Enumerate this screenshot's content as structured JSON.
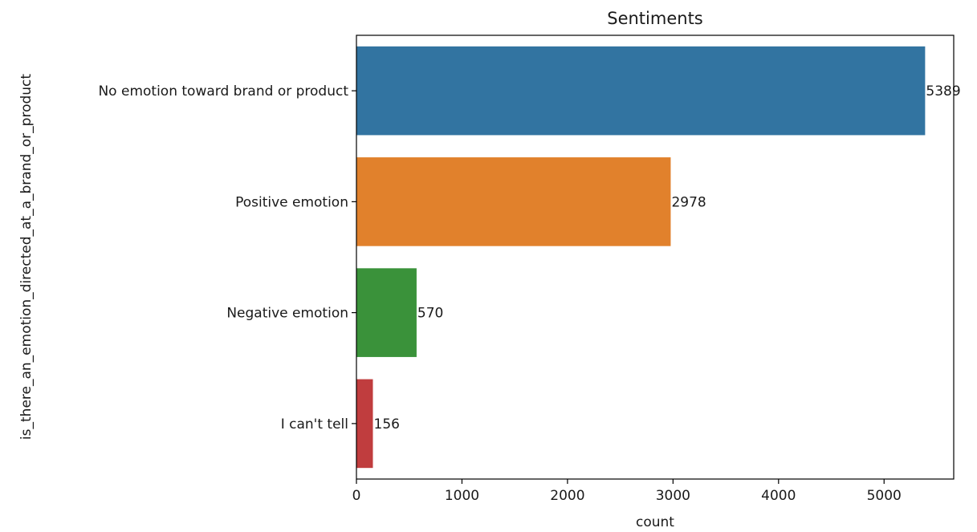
{
  "chart_data": {
    "type": "bar",
    "orientation": "horizontal",
    "title": "Sentiments",
    "xlabel": "count",
    "ylabel": "is_there_an_emotion_directed_at_a_brand_or_product",
    "categories": [
      "No emotion toward brand or product",
      "Positive emotion",
      "Negative emotion",
      "I can't tell"
    ],
    "values": [
      5389,
      2978,
      570,
      156
    ],
    "data_labels": [
      "5389",
      "2978",
      "570",
      "156"
    ],
    "colors": [
      "#3274a1",
      "#e1812c",
      "#3a923a",
      "#c03d3e"
    ],
    "xlim": [
      0,
      5660
    ],
    "xticks": [
      0,
      1000,
      2000,
      3000,
      4000,
      5000
    ],
    "grid": false,
    "legend": "none"
  }
}
